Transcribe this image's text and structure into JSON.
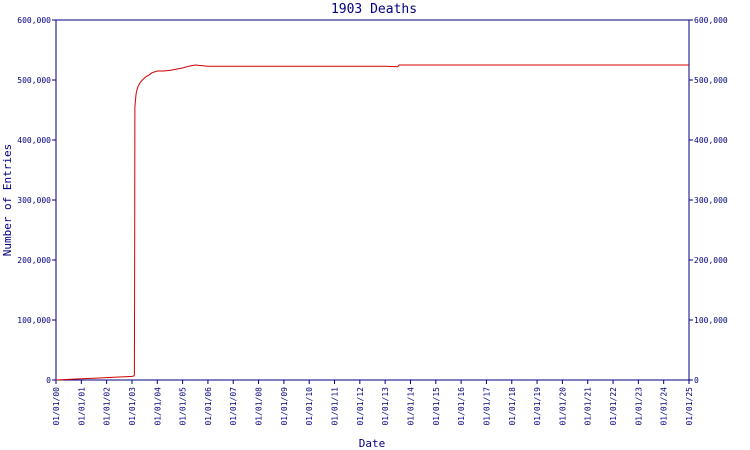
{
  "chart_data": {
    "type": "line",
    "title": "1903 Deaths",
    "xlabel": "Date",
    "ylabel": "Number of Entries",
    "xlim": [
      "01/01/00",
      "01/01/25"
    ],
    "ylim": [
      0,
      600000
    ],
    "y_ticks": [
      0,
      100000,
      200000,
      300000,
      400000,
      500000,
      600000
    ],
    "y_tick_labels": [
      "0",
      "100,000",
      "200,000",
      "300,000",
      "400,000",
      "500,000",
      "600,000"
    ],
    "x_tick_labels": [
      "01/01/00",
      "01/01/01",
      "01/01/02",
      "01/01/03",
      "01/01/04",
      "01/01/05",
      "01/01/06",
      "01/01/07",
      "01/01/08",
      "01/01/09",
      "01/01/10",
      "01/01/11",
      "01/01/12",
      "01/01/13",
      "01/01/14",
      "01/01/15",
      "01/01/16",
      "01/01/17",
      "01/01/18",
      "01/01/19",
      "01/01/20",
      "01/01/21",
      "01/01/22",
      "01/01/23",
      "01/01/24",
      "01/01/25"
    ],
    "grid": false,
    "legend": "none",
    "colors": {
      "frame": "#000080",
      "line": "#d00000",
      "text": "#000080",
      "background": "#ffffff"
    },
    "series": [
      {
        "x": [
          "1900-01-01",
          "1900-07-01",
          "1901-01-01",
          "1901-07-01",
          "1902-01-01",
          "1902-07-01",
          "1903-01-01",
          "1903-02-01",
          "1903-02-05",
          "1903-02-10",
          "1903-02-13",
          "1903-02-20",
          "1903-03-01",
          "1903-03-15",
          "1903-04-01",
          "1903-05-01",
          "1903-06-01",
          "1903-07-15",
          "1903-09-01",
          "1903-10-15",
          "1904-01-01",
          "1904-04-01",
          "1904-07-01",
          "1905-01-01",
          "1905-04-01",
          "1905-07-01",
          "1906-01-01",
          "1907-01-01",
          "1910-01-01",
          "1913-01-01",
          "1913-07-01",
          "1913-07-20",
          "1914-01-01",
          "1920-01-01",
          "1925-01-01"
        ],
        "values": [
          0,
          1000,
          2000,
          3000,
          4000,
          5000,
          6000,
          7000,
          9000,
          230000,
          455000,
          465000,
          477000,
          484000,
          490000,
          496000,
          500000,
          505000,
          508000,
          512000,
          515000,
          515000,
          516000,
          520000,
          523000,
          525000,
          523000,
          523000,
          523000,
          523000,
          522000,
          525000,
          525000,
          525000,
          525000
        ]
      }
    ]
  }
}
